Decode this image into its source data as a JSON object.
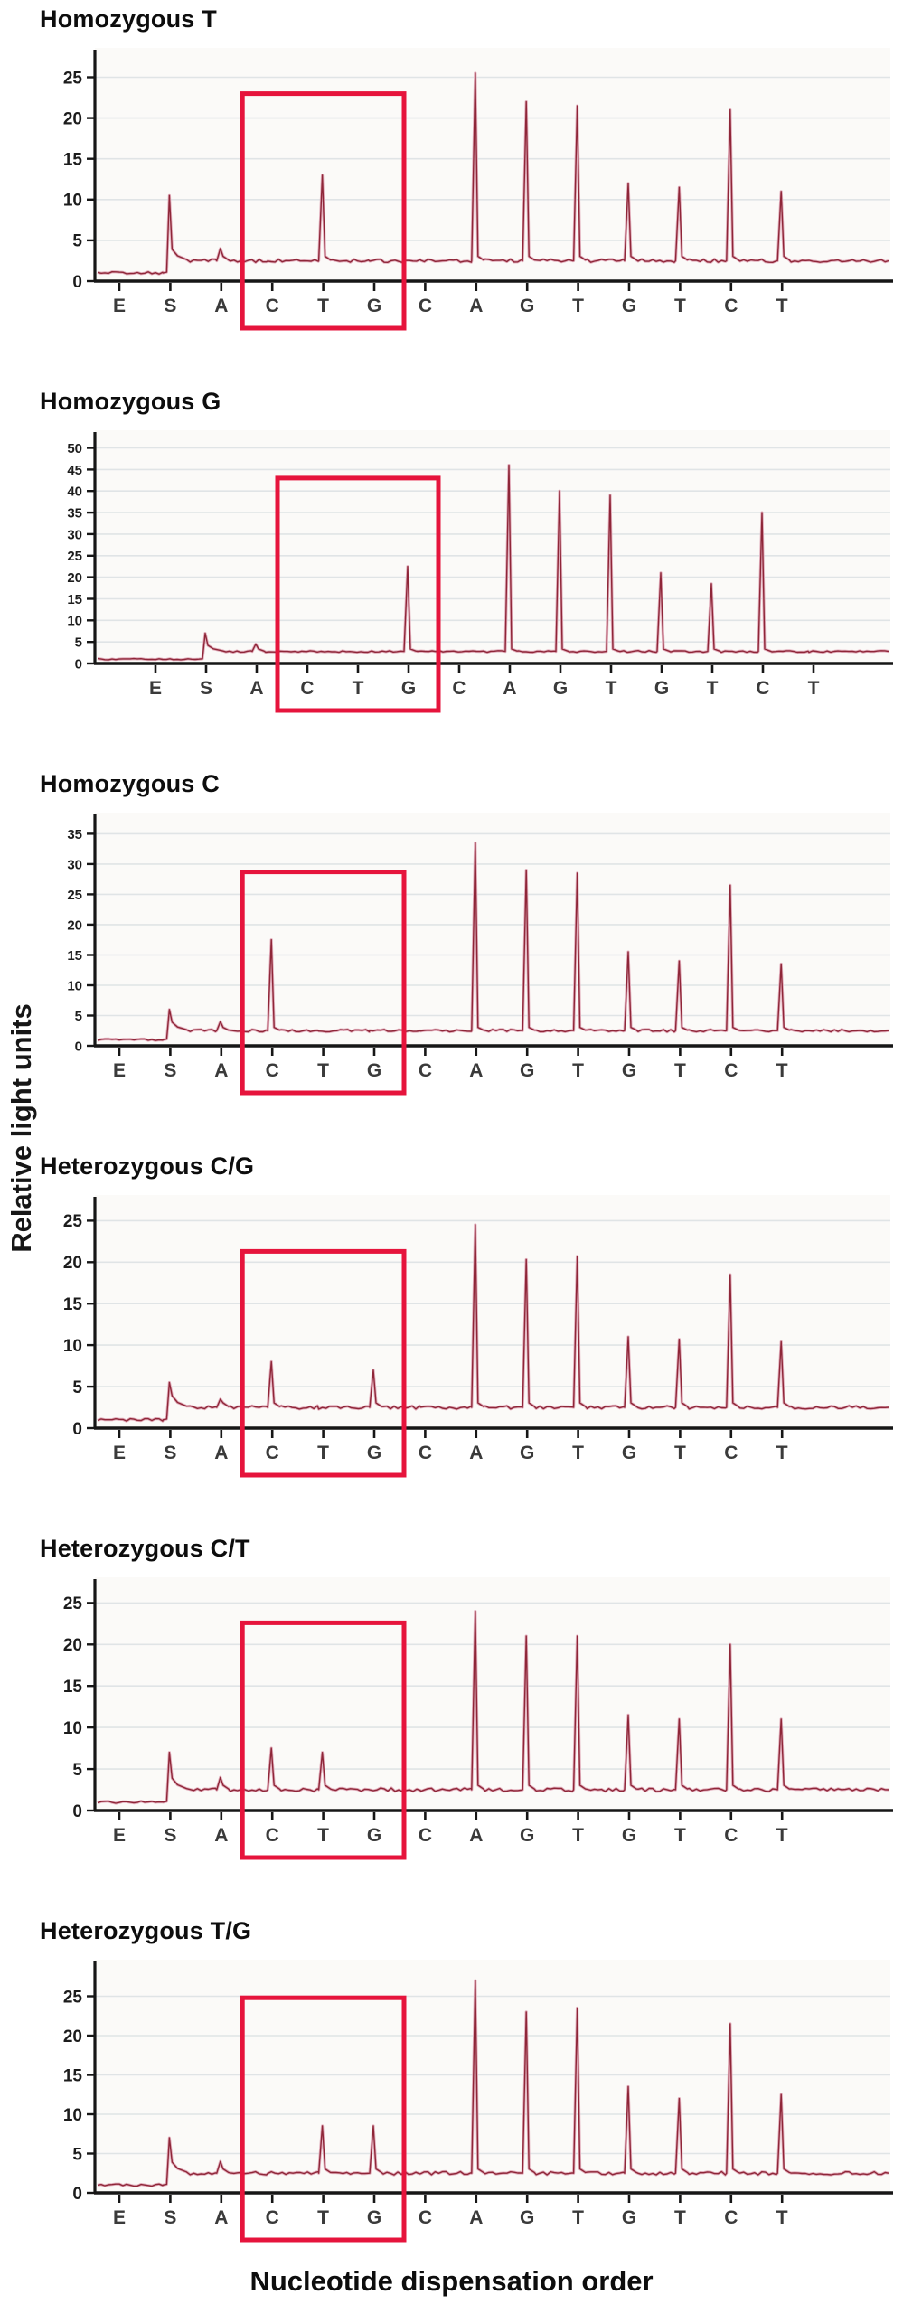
{
  "figure": {
    "y_axis_label": "Relative light units",
    "x_axis_label": "Nucleotide dispensation order"
  },
  "colors": {
    "trace_dark": "#8e2638",
    "trace_halo": "#e2aebc",
    "highlight_box": "#e6143c",
    "gridline": "#e0e4e6",
    "axis": "#161616",
    "dispensation_letter": "#3a3a3a",
    "tick_label": "#1c1c1c",
    "plot_background": "#fbfaf8"
  },
  "chart_data": [
    {
      "type": "line",
      "title": "Homozygous T",
      "categories": [
        "E",
        "S",
        "A",
        "C",
        "T",
        "G",
        "C",
        "A",
        "G",
        "T",
        "G",
        "T",
        "C",
        "T"
      ],
      "values": [
        0,
        10.5,
        4,
        0,
        13,
        0,
        0,
        25.5,
        22,
        21.5,
        12,
        11.5,
        21,
        11
      ],
      "baseline": 2.5,
      "pre_sample_level": 1,
      "y_ticks": [
        0,
        5,
        10,
        15,
        20,
        25
      ],
      "ylim": [
        0,
        27.5
      ],
      "grid": true,
      "highlight_box": {
        "categories": [
          "C",
          "T",
          "G"
        ],
        "from_index": 3,
        "to_index": 5,
        "top_value": 23
      }
    },
    {
      "type": "line",
      "title": "Homozygous G",
      "categories": [
        "E",
        "S",
        "A",
        "C",
        "T",
        "G",
        "C",
        "A",
        "G",
        "T",
        "G",
        "T",
        "C",
        "T"
      ],
      "values": [
        0,
        7,
        4.5,
        0,
        0,
        22.5,
        0,
        46,
        40,
        39,
        21,
        18.5,
        35,
        0
      ],
      "baseline": 2.8,
      "pre_sample_level": 1,
      "y_ticks": [
        0,
        5,
        10,
        15,
        20,
        25,
        30,
        35,
        40,
        45,
        50
      ],
      "ylim": [
        0,
        52
      ],
      "grid": true,
      "highlight_box": {
        "categories": [
          "C",
          "T",
          "G"
        ],
        "from_index": 3,
        "to_index": 5,
        "top_value": 43
      }
    },
    {
      "type": "line",
      "title": "Homozygous C",
      "categories": [
        "E",
        "S",
        "A",
        "C",
        "T",
        "G",
        "C",
        "A",
        "G",
        "T",
        "G",
        "T",
        "C",
        "T"
      ],
      "values": [
        0,
        6,
        4,
        17.5,
        0,
        0,
        0,
        33.5,
        29,
        28.5,
        15.5,
        14,
        26.5,
        13.5
      ],
      "baseline": 2.5,
      "pre_sample_level": 1,
      "y_ticks": [
        0,
        5,
        10,
        15,
        20,
        25,
        30,
        35
      ],
      "ylim": [
        0,
        37
      ],
      "grid": true,
      "highlight_box": {
        "categories": [
          "C",
          "T",
          "G"
        ],
        "from_index": 3,
        "to_index": 5,
        "top_value": 28.7
      }
    },
    {
      "type": "line",
      "title": "Heterozygous C/G",
      "categories": [
        "E",
        "S",
        "A",
        "C",
        "T",
        "G",
        "C",
        "A",
        "G",
        "T",
        "G",
        "T",
        "C",
        "T"
      ],
      "values": [
        0,
        5.5,
        3.5,
        8,
        0,
        7,
        0,
        24.5,
        20.3,
        20.7,
        11,
        10.7,
        18.5,
        10.4
      ],
      "baseline": 2.5,
      "pre_sample_level": 1,
      "y_ticks": [
        0,
        5,
        10,
        15,
        20,
        25
      ],
      "ylim": [
        0,
        27
      ],
      "grid": true,
      "highlight_box": {
        "categories": [
          "C",
          "T",
          "G"
        ],
        "from_index": 3,
        "to_index": 5,
        "top_value": 21.3
      }
    },
    {
      "type": "line",
      "title": "Heterozygous C/T",
      "categories": [
        "E",
        "S",
        "A",
        "C",
        "T",
        "G",
        "C",
        "A",
        "G",
        "T",
        "G",
        "T",
        "C",
        "T"
      ],
      "values": [
        0,
        7,
        4,
        7.5,
        7,
        0,
        0,
        24,
        21,
        21,
        11.5,
        11,
        20,
        11
      ],
      "baseline": 2.5,
      "pre_sample_level": 1,
      "y_ticks": [
        0,
        5,
        10,
        15,
        20,
        25
      ],
      "ylim": [
        0,
        27
      ],
      "grid": true,
      "highlight_box": {
        "categories": [
          "C",
          "T",
          "G"
        ],
        "from_index": 3,
        "to_index": 5,
        "top_value": 22.6
      }
    },
    {
      "type": "line",
      "title": "Heterozygous T/G",
      "categories": [
        "E",
        "S",
        "A",
        "C",
        "T",
        "G",
        "C",
        "A",
        "G",
        "T",
        "G",
        "T",
        "C",
        "T"
      ],
      "values": [
        0,
        7,
        4,
        0,
        8.5,
        8.5,
        0,
        27,
        23,
        23.5,
        13.5,
        12,
        21.5,
        12.5
      ],
      "baseline": 2.5,
      "pre_sample_level": 1,
      "y_ticks": [
        0,
        5,
        10,
        15,
        20,
        25
      ],
      "ylim": [
        0,
        28.5
      ],
      "grid": true,
      "highlight_box": {
        "categories": [
          "C",
          "T",
          "G"
        ],
        "from_index": 3,
        "to_index": 5,
        "top_value": 24.8
      }
    }
  ]
}
